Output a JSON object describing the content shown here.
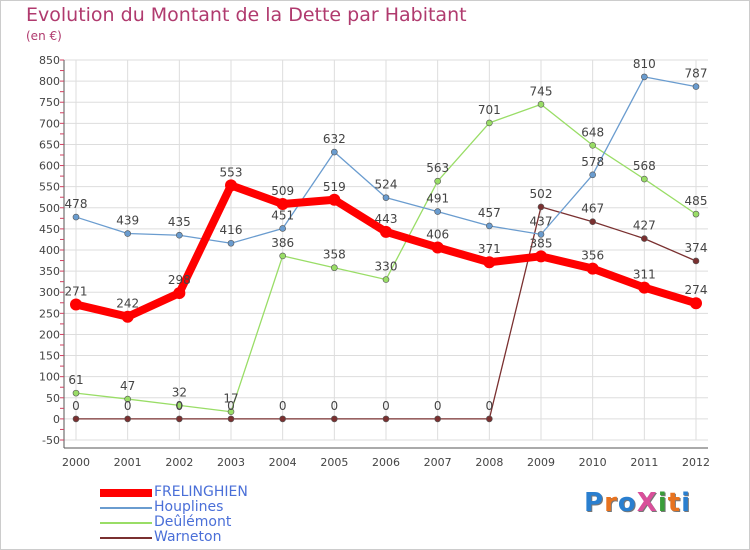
{
  "title": "Evolution du Montant de la Dette par Habitant",
  "unit_label": "(en €)",
  "logo_text": "ProXiti",
  "logo_colors": [
    "#2a7fcf",
    "#e8731f",
    "#2a7fcf",
    "#d94f9a",
    "#3a9d3a",
    "#e8731f",
    "#2a7fcf"
  ],
  "chart_data": {
    "type": "line",
    "title": "Evolution du Montant de la Dette par Habitant",
    "ylabel": "(en €)",
    "xlabel": "",
    "x": [
      "2000",
      "2001",
      "2002",
      "2003",
      "2004",
      "2005",
      "2006",
      "2007",
      "2008",
      "2009",
      "2010",
      "2011",
      "2012"
    ],
    "ylim": [
      -50,
      850
    ],
    "yticks": [
      "-50",
      "0",
      "50",
      "100",
      "150",
      "200",
      "250",
      "300",
      "350",
      "400",
      "450",
      "500",
      "550",
      "600",
      "650",
      "700",
      "750",
      "800",
      "850"
    ],
    "grid": true,
    "legend_position": "bottom-left",
    "series": [
      {
        "name": "FRELINGHIEN",
        "color": "#ff0000",
        "values": [
          271,
          242,
          298,
          553,
          509,
          519,
          443,
          406,
          371,
          385,
          356,
          311,
          274
        ],
        "labels": [
          "271",
          "242",
          "298",
          "553",
          "509",
          "519",
          "443",
          "406",
          "371",
          "385",
          "356",
          "311",
          "274"
        ]
      },
      {
        "name": "Houplines",
        "color": "#6a9ccf",
        "values": [
          478,
          439,
          435,
          416,
          451,
          632,
          524,
          491,
          457,
          437,
          578,
          810,
          787
        ],
        "labels": [
          "478",
          "439",
          "435",
          "416",
          "451",
          "632",
          "524",
          "491",
          "457",
          "437",
          "578",
          "810",
          "787"
        ]
      },
      {
        "name": "Deûlémont",
        "color": "#99dd66",
        "values": [
          61,
          47,
          32,
          17,
          386,
          358,
          330,
          563,
          701,
          745,
          648,
          568,
          485
        ],
        "labels": [
          "61",
          "47",
          "32",
          "17",
          "386",
          "358",
          "330",
          "563",
          "701",
          "745",
          "648",
          "568",
          "485"
        ]
      },
      {
        "name": "Warneton",
        "color": "#7a3030",
        "values": [
          0,
          0,
          0,
          0,
          0,
          0,
          0,
          0,
          0,
          502,
          467,
          427,
          374
        ],
        "labels": [
          "0",
          "0",
          "0",
          "0",
          "0",
          "0",
          "0",
          "0",
          "0",
          "502",
          "467",
          "427",
          "374"
        ]
      }
    ]
  }
}
